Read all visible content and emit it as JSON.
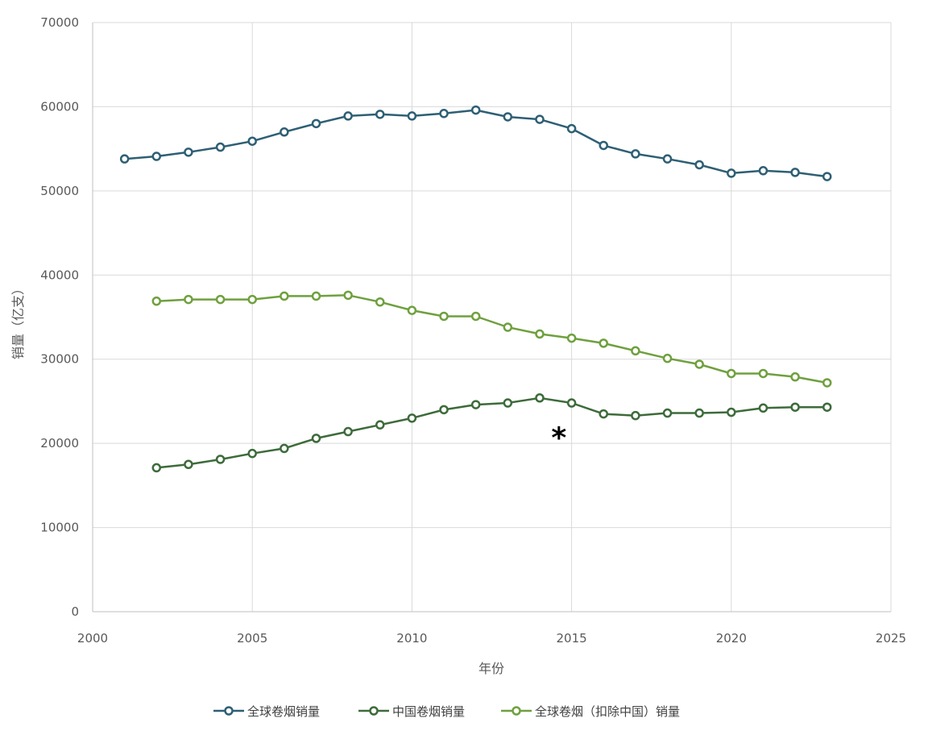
{
  "chart_data": {
    "type": "line",
    "xlabel": "年份",
    "ylabel": "销量（亿支）",
    "xlim": [
      2000,
      2025
    ],
    "ylim": [
      0,
      70000
    ],
    "xticks": [
      2000,
      2005,
      2010,
      2015,
      2020,
      2025
    ],
    "yticks": [
      0,
      10000,
      20000,
      30000,
      40000,
      50000,
      60000,
      70000
    ],
    "xtick_labels": [
      "2000",
      "2005",
      "2010",
      "2015",
      "2020",
      "2025"
    ],
    "ytick_labels": [
      "0",
      "10000",
      "20000",
      "30000",
      "40000",
      "50000",
      "60000",
      "70000"
    ],
    "grid": true,
    "legend_position": "bottom",
    "annotation": {
      "text": "*",
      "x": 2014.6,
      "y": 21000
    },
    "series": [
      {
        "name": "全球卷烟销量",
        "color": "#2e5f74",
        "x": [
          2001,
          2002,
          2003,
          2004,
          2005,
          2006,
          2007,
          2008,
          2009,
          2010,
          2011,
          2012,
          2013,
          2014,
          2015,
          2016,
          2017,
          2018,
          2019,
          2020,
          2021,
          2022,
          2023
        ],
        "y": [
          53800,
          54100,
          54600,
          55200,
          55900,
          57000,
          58000,
          58900,
          59100,
          58900,
          59200,
          59600,
          58800,
          58500,
          57400,
          55400,
          54400,
          53800,
          53100,
          52100,
          52400,
          52200,
          51700
        ]
      },
      {
        "name": "中国卷烟销量",
        "color": "#3d6b3a",
        "x": [
          2002,
          2003,
          2004,
          2005,
          2006,
          2007,
          2008,
          2009,
          2010,
          2011,
          2012,
          2013,
          2014,
          2015,
          2016,
          2017,
          2018,
          2019,
          2020,
          2021,
          2022,
          2023
        ],
        "y": [
          17100,
          17500,
          18100,
          18800,
          19400,
          20600,
          21400,
          22200,
          23000,
          24000,
          24600,
          24800,
          25400,
          24800,
          23500,
          23300,
          23600,
          23600,
          23700,
          24200,
          24300,
          24300
        ]
      },
      {
        "name": "全球卷烟（扣除中国）销量",
        "color": "#6fa03e",
        "x": [
          2002,
          2003,
          2004,
          2005,
          2006,
          2007,
          2008,
          2009,
          2010,
          2011,
          2012,
          2013,
          2014,
          2015,
          2016,
          2017,
          2018,
          2019,
          2020,
          2021,
          2022,
          2023
        ],
        "y": [
          36900,
          37100,
          37100,
          37100,
          37500,
          37500,
          37600,
          36800,
          35800,
          35100,
          35100,
          33800,
          33000,
          32500,
          31900,
          31000,
          30100,
          29400,
          28300,
          28300,
          27900,
          27200
        ]
      }
    ]
  }
}
